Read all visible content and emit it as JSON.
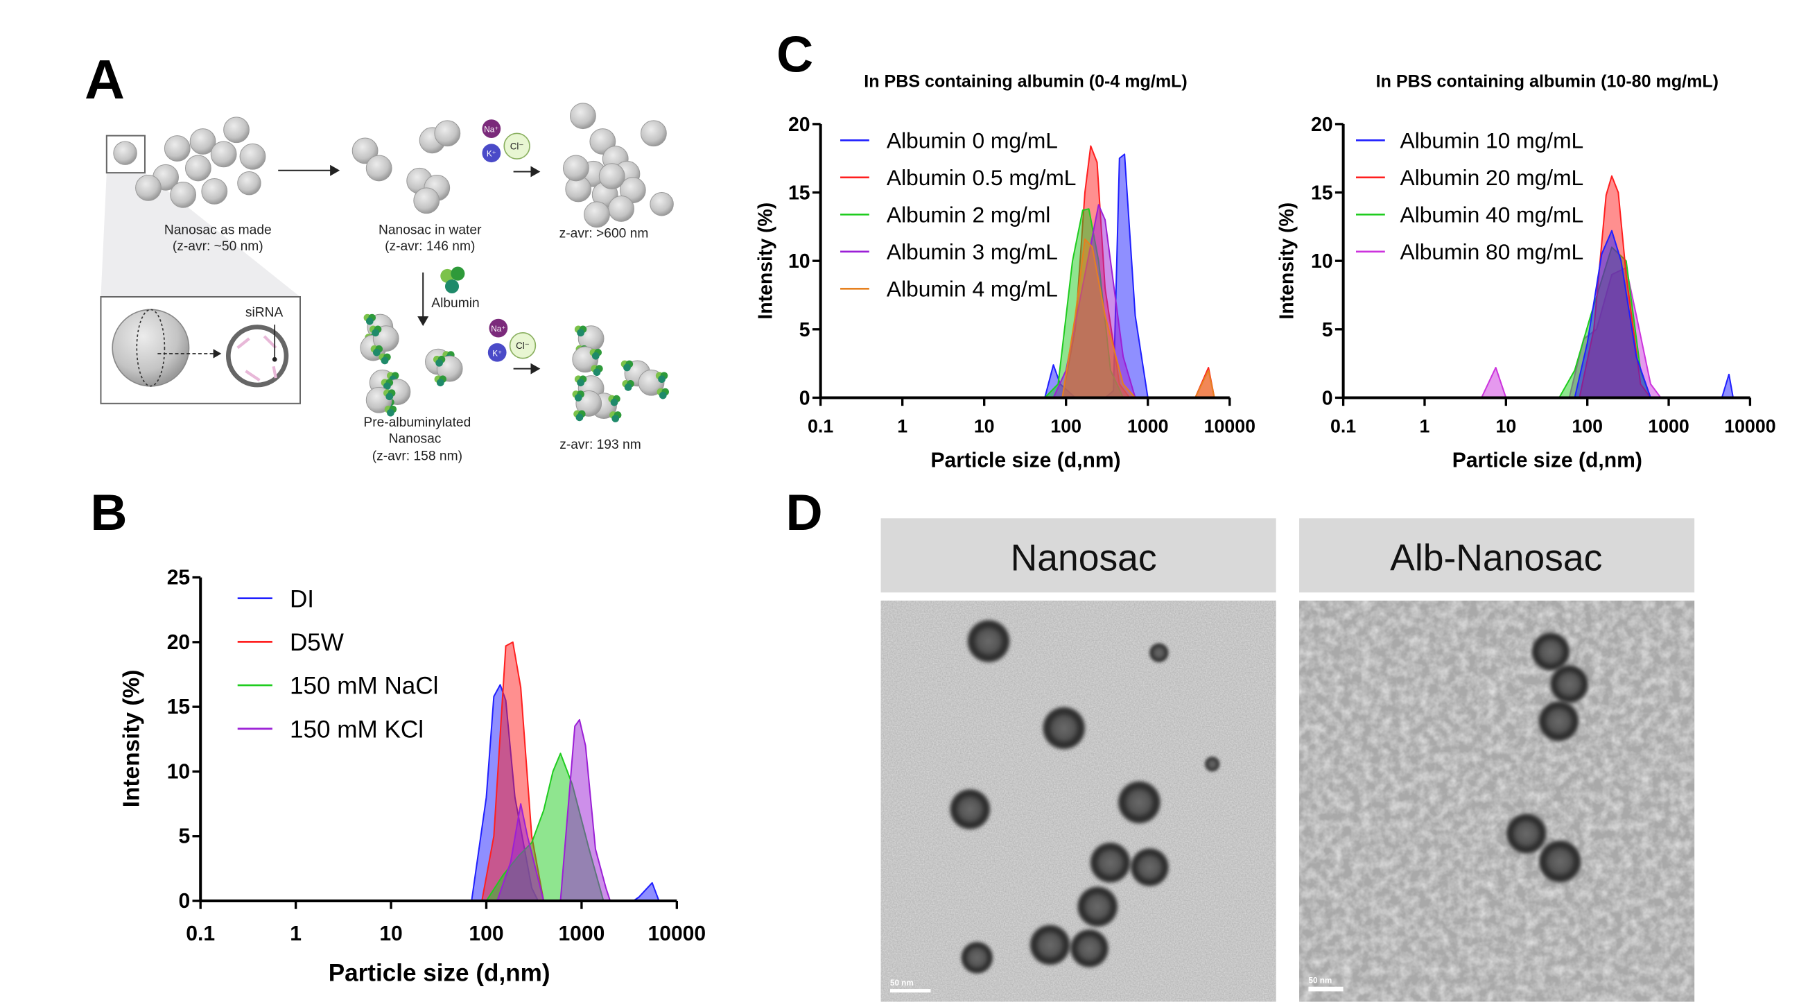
{
  "panel_labels": {
    "a": "A",
    "b": "B",
    "c": "C",
    "d": "D"
  },
  "panel_a": {
    "as_made": "Nanosac as made",
    "as_made_zavr": "(z-avr: ~50 nm)",
    "in_water": "Nanosac in water",
    "in_water_zavr": "(z-avr: 146 nm)",
    "aggregate_zavr": "z-avr: >600 nm",
    "albumin": "Albumin",
    "sirna": "siRNA",
    "pre_alb_1": "Pre-albuminylated",
    "pre_alb_2": "Nanosac",
    "pre_alb_zavr": "(z-avr: 158 nm)",
    "alb_salt_zavr": "z-avr: 193 nm",
    "ions": {
      "na": "Na⁺",
      "k": "K⁺",
      "cl": "Cl⁻"
    },
    "colors": {
      "na": "#7b2a7b",
      "k": "#4a4ac8",
      "cl": "#e6f5cc",
      "albumin": "#3aa84a",
      "sphere": "#c8c8c8"
    }
  },
  "panel_d": {
    "left_title": "Nanosac",
    "right_title": "Alb-Nanosac",
    "left_scale": "50 nm",
    "right_scale": "50 nm"
  },
  "chart_data": [
    {
      "type": "area",
      "title": "",
      "xlabel": "Particle size (d,nm)",
      "ylabel": "Intensity (%)",
      "xscale": "log",
      "xlim": [
        0.1,
        10000
      ],
      "ylim": [
        0,
        25
      ],
      "xticks": [
        "0.1",
        "1",
        "10",
        "100",
        "1000",
        "10000"
      ],
      "yticks": [
        "0",
        "5",
        "10",
        "15",
        "20",
        "25"
      ],
      "grid": false,
      "legend": "top-left",
      "series": [
        {
          "name": "DI",
          "color": "#1f1fff",
          "points": [
            [
              0.4,
              0
            ],
            [
              70,
              0
            ],
            [
              100,
              8
            ],
            [
              120,
              15.8
            ],
            [
              140,
              16.7
            ],
            [
              160,
              15.5
            ],
            [
              200,
              8
            ],
            [
              300,
              1
            ],
            [
              350,
              0
            ],
            [
              3500,
              0
            ],
            [
              4000,
              0.3
            ],
            [
              5500,
              1.4
            ],
            [
              6500,
              0
            ],
            [
              9000,
              0
            ]
          ]
        },
        {
          "name": "D5W",
          "color": "#ff1f1f",
          "points": [
            [
              0.4,
              0
            ],
            [
              90,
              0
            ],
            [
              120,
              5
            ],
            [
              160,
              19.7
            ],
            [
              190,
              20
            ],
            [
              230,
              16.5
            ],
            [
              300,
              5
            ],
            [
              400,
              0
            ],
            [
              9000,
              0
            ]
          ]
        },
        {
          "name": "150 mM NaCl",
          "color": "#1fcc1f",
          "points": [
            [
              0.4,
              0
            ],
            [
              100,
              0
            ],
            [
              150,
              2
            ],
            [
              220,
              3.5
            ],
            [
              300,
              4.5
            ],
            [
              400,
              7
            ],
            [
              500,
              10
            ],
            [
              600,
              11.4
            ],
            [
              800,
              9
            ],
            [
              1200,
              4
            ],
            [
              1700,
              0
            ],
            [
              9000,
              0
            ]
          ]
        },
        {
          "name": "150 mM KCl",
          "color": "#9b1fd6",
          "points": [
            [
              0.4,
              0
            ],
            [
              130,
              0
            ],
            [
              180,
              3
            ],
            [
              230,
              7.5
            ],
            [
              270,
              5
            ],
            [
              400,
              0
            ],
            [
              600,
              0
            ],
            [
              700,
              6
            ],
            [
              850,
              13.5
            ],
            [
              950,
              14
            ],
            [
              1100,
              12
            ],
            [
              1400,
              4
            ],
            [
              1800,
              1
            ],
            [
              2000,
              0
            ],
            [
              9000,
              0
            ]
          ]
        }
      ]
    },
    {
      "type": "area",
      "title": "In PBS containing albumin (0-4 mg/mL)",
      "xlabel": "Particle size (d,nm)",
      "ylabel": "Intensity (%)",
      "xscale": "log",
      "xlim": [
        0.1,
        10000
      ],
      "ylim": [
        0,
        20
      ],
      "xticks": [
        "0.1",
        "1",
        "10",
        "100",
        "1000",
        "10000"
      ],
      "yticks": [
        "0",
        "5",
        "10",
        "15",
        "20"
      ],
      "grid": false,
      "legend": "top-left",
      "series": [
        {
          "name": "Albumin 0 mg/mL",
          "color": "#1f1fff",
          "points": [
            [
              0.4,
              0
            ],
            [
              55,
              0
            ],
            [
              70,
              2.4
            ],
            [
              85,
              1
            ],
            [
              130,
              0
            ],
            [
              300,
              0
            ],
            [
              380,
              0.5
            ],
            [
              450,
              17.5
            ],
            [
              520,
              17.8
            ],
            [
              700,
              6
            ],
            [
              1000,
              0
            ],
            [
              9000,
              0
            ]
          ]
        },
        {
          "name": "Albumin 0.5 mg/mL",
          "color": "#ff1f1f",
          "points": [
            [
              0.4,
              0
            ],
            [
              90,
              0
            ],
            [
              130,
              5
            ],
            [
              170,
              15
            ],
            [
              200,
              18.4
            ],
            [
              240,
              17.2
            ],
            [
              300,
              8
            ],
            [
              450,
              1
            ],
            [
              600,
              0
            ],
            [
              3800,
              0
            ],
            [
              5500,
              2.2
            ],
            [
              6500,
              0
            ],
            [
              9000,
              0
            ]
          ]
        },
        {
          "name": "Albumin 2 mg/ml",
          "color": "#1fcc1f",
          "points": [
            [
              0.4,
              0
            ],
            [
              55,
              0
            ],
            [
              80,
              1
            ],
            [
              120,
              10
            ],
            [
              160,
              13.7
            ],
            [
              190,
              13.8
            ],
            [
              250,
              10
            ],
            [
              350,
              2
            ],
            [
              500,
              0
            ],
            [
              9000,
              0
            ]
          ]
        },
        {
          "name": "Albumin 3 mg/mL",
          "color": "#9b1fd6",
          "points": [
            [
              0.4,
              0
            ],
            [
              70,
              0
            ],
            [
              100,
              2
            ],
            [
              170,
              9
            ],
            [
              250,
              14.1
            ],
            [
              300,
              13
            ],
            [
              500,
              3
            ],
            [
              700,
              0
            ],
            [
              9000,
              0
            ]
          ]
        },
        {
          "name": "Albumin 4 mg/mL",
          "color": "#e6801f",
          "points": [
            [
              0.4,
              0
            ],
            [
              90,
              0
            ],
            [
              130,
              6
            ],
            [
              170,
              11.6
            ],
            [
              210,
              11
            ],
            [
              300,
              6
            ],
            [
              500,
              1
            ],
            [
              700,
              0
            ],
            [
              3800,
              0
            ],
            [
              5500,
              2
            ],
            [
              6500,
              0
            ],
            [
              9000,
              0
            ]
          ]
        }
      ]
    },
    {
      "type": "area",
      "title": "In PBS containing albumin (10-80 mg/mL)",
      "xlabel": "Particle size (d,nm)",
      "ylabel": "Intensity (%)",
      "xscale": "log",
      "xlim": [
        0.1,
        10000
      ],
      "ylim": [
        0,
        20
      ],
      "xticks": [
        "0.1",
        "1",
        "10",
        "100",
        "1000",
        "10000"
      ],
      "yticks": [
        "0",
        "5",
        "10",
        "15",
        "20"
      ],
      "grid": false,
      "legend": "top-left",
      "series": [
        {
          "name": "Albumin 80 mg/mL",
          "color": "#cc33dd",
          "points": [
            [
              0.4,
              0
            ],
            [
              5,
              0
            ],
            [
              7.5,
              2.2
            ],
            [
              10,
              0
            ],
            [
              60,
              0
            ],
            [
              90,
              4.3
            ],
            [
              130,
              5
            ],
            [
              200,
              9
            ],
            [
              300,
              9.5
            ],
            [
              400,
              6
            ],
            [
              600,
              1
            ],
            [
              800,
              0
            ],
            [
              9000,
              0
            ]
          ]
        },
        {
          "name": "Albumin 40 mg/mL",
          "color": "#1fcc1f",
          "points": [
            [
              0.4,
              0
            ],
            [
              45,
              0
            ],
            [
              70,
              2
            ],
            [
              110,
              6
            ],
            [
              200,
              11
            ],
            [
              300,
              10
            ],
            [
              450,
              2
            ],
            [
              600,
              0
            ],
            [
              9000,
              0
            ]
          ]
        },
        {
          "name": "Albumin 20 mg/mL",
          "color": "#ff1f1f",
          "points": [
            [
              0.4,
              0
            ],
            [
              80,
              0
            ],
            [
              120,
              5
            ],
            [
              170,
              14.8
            ],
            [
              200,
              16.2
            ],
            [
              240,
              15
            ],
            [
              300,
              9
            ],
            [
              450,
              1
            ],
            [
              600,
              0
            ],
            [
              9000,
              0
            ]
          ]
        },
        {
          "name": "Albumin 10 mg/mL",
          "color": "#1f1fff",
          "points": [
            [
              0.4,
              0
            ],
            [
              70,
              0
            ],
            [
              100,
              4
            ],
            [
              150,
              10.5
            ],
            [
              200,
              12.2
            ],
            [
              260,
              10
            ],
            [
              400,
              3
            ],
            [
              600,
              0
            ],
            [
              4500,
              0
            ],
            [
              5500,
              1.7
            ],
            [
              6200,
              0
            ],
            [
              9000,
              0
            ]
          ]
        }
      ],
      "legend_order": [
        3,
        2,
        1,
        0
      ]
    }
  ]
}
